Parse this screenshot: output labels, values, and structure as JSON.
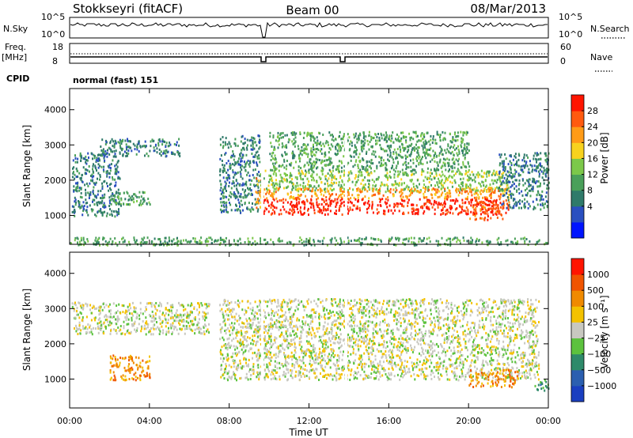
{
  "header": {
    "station": "Stokkseyri (fitACF)",
    "beam": "Beam 00",
    "date": "08/Mar/2013"
  },
  "param_panel": {
    "nsky_label": "N.Sky",
    "nsky_ticks": [
      "10^5",
      "10^0"
    ],
    "nsearch_label": "N.Search",
    "freq_label": "Freq.",
    "freq_unit": "[MHz]",
    "freq_ticks": [
      "18",
      "8"
    ],
    "nave_ticks": [
      "60",
      "0"
    ],
    "nave_label": "Nave",
    "cpid_label": "CPID",
    "cpid_value": "normal (fast) 151"
  },
  "chart_data": [
    {
      "type": "heatmap",
      "name": "power-panel",
      "x_ticks": [
        "00:00",
        "04:00",
        "08:00",
        "12:00",
        "16:00",
        "20:00",
        "00:00"
      ],
      "xlim_hours": [
        0,
        24
      ],
      "ylabel": "Slant Range [km]",
      "ylim": [
        180,
        4600
      ],
      "y_ticks": [
        1000,
        2000,
        3000,
        4000
      ],
      "colorbar": {
        "label": "Power [dB]",
        "ticks": [
          "28",
          "24",
          "20",
          "16",
          "12",
          "8",
          "4"
        ],
        "colors": [
          "#0014ff",
          "#2a4fc0",
          "#2f7a6a",
          "#4aa05a",
          "#7cc84a",
          "#f7d21e",
          "#ff9b17",
          "#ff5a0f",
          "#ff1500"
        ]
      },
      "regions": [
        {
          "t0": 0.1,
          "t1": 2.5,
          "r0": 1000,
          "r1": 2800,
          "level": 2
        },
        {
          "t0": 1.5,
          "t1": 5.5,
          "r0": 2700,
          "r1": 3200,
          "level": 2
        },
        {
          "t0": 2.0,
          "t1": 4.0,
          "r0": 1300,
          "r1": 1700,
          "level": 3
        },
        {
          "t0": 7.5,
          "t1": 9.5,
          "r0": 1100,
          "r1": 3300,
          "level": 2
        },
        {
          "t0": 9.3,
          "t1": 9.6,
          "r0": 1200,
          "r1": 2100,
          "level": 6
        },
        {
          "t0": 9.5,
          "t1": 22.0,
          "r0": 1700,
          "r1": 2300,
          "level": 4
        },
        {
          "t0": 9.5,
          "t1": 22.0,
          "r0": 1500,
          "r1": 1800,
          "level": 6
        },
        {
          "t0": 9.6,
          "t1": 21.5,
          "r0": 1050,
          "r1": 1500,
          "level": 8
        },
        {
          "t0": 10.0,
          "t1": 20.0,
          "r0": 2300,
          "r1": 3400,
          "level": 3
        },
        {
          "t0": 20.0,
          "t1": 22.0,
          "r0": 900,
          "r1": 1500,
          "level": 7
        },
        {
          "t0": 21.5,
          "t1": 24.0,
          "r0": 1200,
          "r1": 2800,
          "level": 2
        },
        {
          "t0": 0.0,
          "t1": 24.0,
          "r0": 180,
          "r1": 400,
          "level": 3
        }
      ]
    },
    {
      "type": "heatmap",
      "name": "velocity-panel",
      "x_ticks": [
        "00:00",
        "04:00",
        "08:00",
        "12:00",
        "16:00",
        "20:00",
        "00:00"
      ],
      "xlabel": "Time UT",
      "xlim_hours": [
        0,
        24
      ],
      "ylabel": "Slant Range [km]",
      "ylim": [
        180,
        4600
      ],
      "y_ticks": [
        1000,
        2000,
        3000,
        4000
      ],
      "colorbar": {
        "label": "Velocity [m s⁻¹]",
        "ticks": [
          "1000",
          "500",
          "100",
          "25",
          "−25",
          "−100",
          "−500",
          "−1000"
        ],
        "colors": [
          "#1a3fc0",
          "#2b5fb0",
          "#2e8a6a",
          "#5cc23e",
          "#c8c8c0",
          "#f4c200",
          "#f08a00",
          "#f05400",
          "#ff1400"
        ]
      },
      "regions": [
        {
          "t0": 0.1,
          "t1": 7.0,
          "r0": 2300,
          "r1": 3200,
          "level": 4
        },
        {
          "t0": 7.5,
          "t1": 23.5,
          "r0": 1000,
          "r1": 3300,
          "level": 4
        },
        {
          "t0": 2.0,
          "t1": 4.0,
          "r0": 1000,
          "r1": 1700,
          "level": 6
        },
        {
          "t0": 20.0,
          "t1": 22.5,
          "r0": 800,
          "r1": 1300,
          "level": 6
        },
        {
          "t0": 23.3,
          "t1": 24.0,
          "r0": 700,
          "r1": 1000,
          "level": 2
        }
      ]
    }
  ]
}
